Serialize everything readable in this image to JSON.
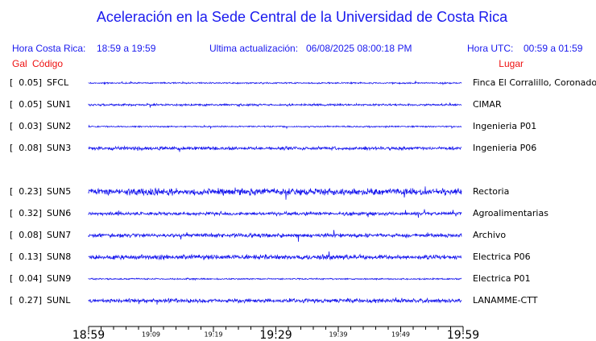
{
  "header": {
    "title": "Aceleración en la Sede Central de la Universidad de Costa Rica",
    "local_label": "Hora Costa Rica:",
    "local_range": "18:59 a 19:59",
    "update_label": "Ultima actualización:",
    "update_value": "06/08/2025 08:00:18 PM",
    "utc_label": "Hora UTC:",
    "utc_range": "00:59 a 01:59"
  },
  "columns": {
    "gal": "Gal",
    "code": "Código",
    "place": "Lugar"
  },
  "stations": [
    {
      "gal": "[  0.05]",
      "code": "SFCL",
      "place": "Finca El Corralillo, Coronado"
    },
    {
      "gal": "[  0.05]",
      "code": "SUN1",
      "place": "CIMAR"
    },
    {
      "gal": "[  0.03]",
      "code": "SUN2",
      "place": "Ingenieria P01"
    },
    {
      "gal": "[  0.08]",
      "code": "SUN3",
      "place": "Ingenieria P06"
    },
    {
      "gal": "[  0.23]",
      "code": "SUN5",
      "place": "Rectoria"
    },
    {
      "gal": "[  0.32]",
      "code": "SUN6",
      "place": "Agroalimentarias"
    },
    {
      "gal": "[  0.08]",
      "code": "SUN7",
      "place": "Archivo"
    },
    {
      "gal": "[  0.13]",
      "code": "SUN8",
      "place": "Electrica P06"
    },
    {
      "gal": "[  0.04]",
      "code": "SUN9",
      "place": "Electrica P01"
    },
    {
      "gal": "[  0.27]",
      "code": "SUNL",
      "place": "LANAMME-CTT"
    }
  ],
  "time_axis": {
    "major": [
      "18:59",
      "19:29",
      "19:59"
    ],
    "minor": [
      "19:09",
      "19:19",
      "19:39",
      "19:49"
    ]
  }
}
